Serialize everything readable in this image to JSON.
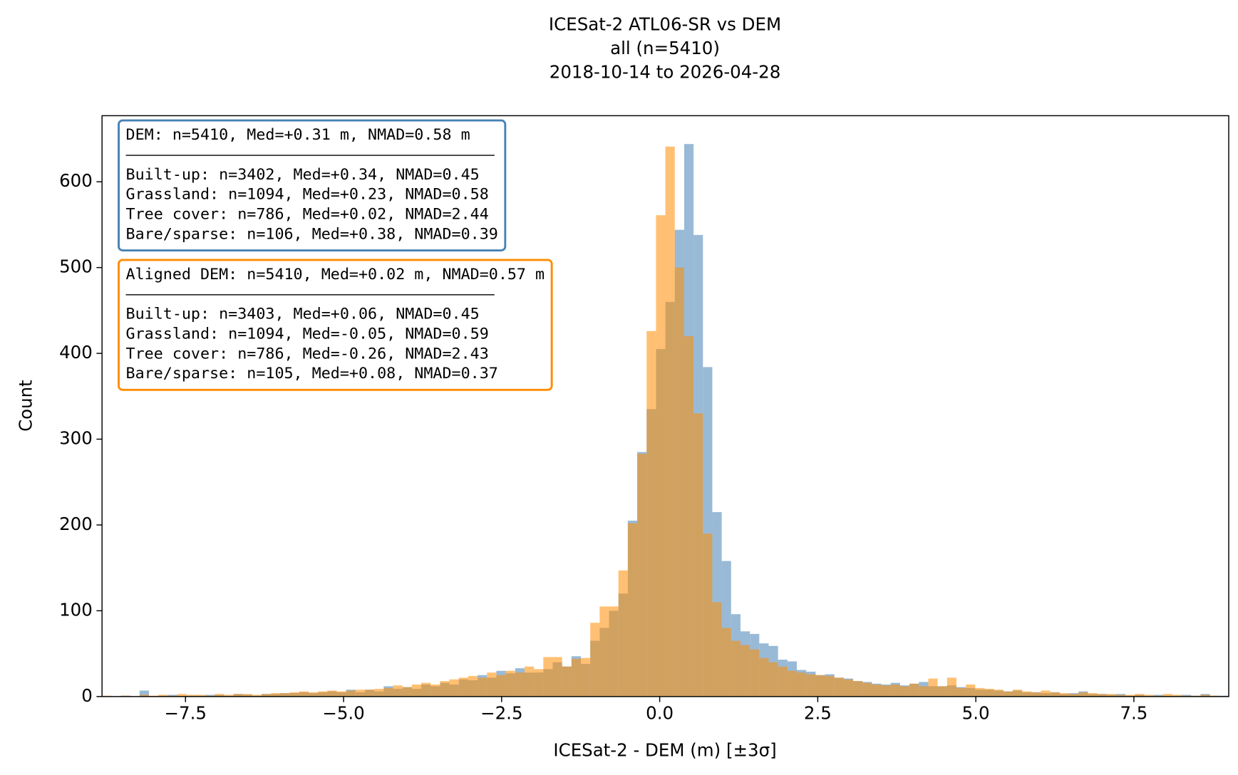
{
  "chart_data": {
    "type": "histogram",
    "title": "ICESat-2 ATL06-SR vs DEM",
    "subtitle": [
      "all (n=5410)",
      "2018-10-14 to 2026-04-28"
    ],
    "xlabel": "ICESat-2 - DEM (m) [±3σ]",
    "ylabel": "Count",
    "xlim": [
      -8.82,
      9.0
    ],
    "ylim": [
      0,
      677
    ],
    "xticks": [
      {
        "value": -7.5,
        "label": "−7.5"
      },
      {
        "value": -5,
        "label": "−5.0"
      },
      {
        "value": -2.5,
        "label": "−2.5"
      },
      {
        "value": 0,
        "label": "0.0"
      },
      2.5,
      {
        "value": 5,
        "label": "5.0"
      },
      7.5
    ],
    "yticks": [
      0,
      100,
      200,
      300,
      400,
      500,
      600
    ],
    "bins": [
      -8.82,
      -8.6715,
      -8.523,
      -8.3745,
      -8.226,
      -8.0775,
      -7.929,
      -7.7805,
      -7.632,
      -7.4835,
      -7.335,
      -7.1865,
      -7.038,
      -6.8895,
      -6.741,
      -6.5925,
      -6.444,
      -6.2955,
      -6.147,
      -5.9985,
      -5.85,
      -5.7015,
      -5.553,
      -5.4045,
      -5.256,
      -5.1075,
      -4.959,
      -4.8105,
      -4.662,
      -4.5135,
      -4.365,
      -4.2165,
      -4.068,
      -3.9195,
      -3.771,
      -3.6225,
      -3.474,
      -3.3255,
      -3.177,
      -3.0285,
      -2.88,
      -2.7315,
      -2.583,
      -2.4345,
      -2.286,
      -2.1375,
      -1.989,
      -1.8405,
      -1.692,
      -1.5435,
      -1.395,
      -1.2465,
      -1.098,
      -0.9495,
      -0.801,
      -0.6525,
      -0.504,
      -0.3555,
      -0.207,
      -0.0585,
      0.09,
      0.2385,
      0.387,
      0.5355,
      0.684,
      0.8325,
      0.981,
      1.1295,
      1.278,
      1.4265,
      1.575,
      1.7235,
      1.872,
      2.0205,
      2.169,
      2.3175,
      2.466,
      2.6145,
      2.763,
      2.9115,
      3.06,
      3.2085,
      3.357,
      3.5055,
      3.654,
      3.8025,
      3.951,
      4.0995,
      4.248,
      4.3965,
      4.545,
      4.6935,
      4.842,
      4.9905,
      5.139,
      5.2875,
      5.436,
      5.5845,
      5.733,
      5.8815,
      6.03,
      6.1785,
      6.327,
      6.4755,
      6.624,
      6.7725,
      6.921,
      7.0695,
      7.218,
      7.3665,
      7.515,
      7.6635,
      7.812,
      7.9605,
      8.109,
      8.2575,
      8.406,
      8.5545,
      8.703,
      8.8515,
      9.0
    ],
    "series": [
      {
        "color": "#4682b4",
        "alpha": 0.55,
        "values": [
          0,
          0,
          1,
          0,
          7,
          0,
          1,
          2,
          1,
          1,
          1,
          2,
          2,
          1,
          3,
          2,
          1,
          3,
          3,
          4,
          4,
          5,
          4,
          5,
          6,
          5,
          8,
          5,
          8,
          6,
          12,
          9,
          11,
          9,
          14,
          12,
          16,
          14,
          20,
          19,
          25,
          22,
          30,
          27,
          33,
          28,
          28,
          32,
          40,
          35,
          47,
          38,
          65,
          80,
          100,
          120,
          205,
          285,
          335,
          405,
          460,
          544,
          644,
          538,
          384,
          215,
          158,
          96,
          76,
          73,
          62,
          59,
          43,
          41,
          31,
          29,
          25,
          26,
          22,
          21,
          18,
          17,
          15,
          14,
          16,
          13,
          15,
          17,
          12,
          12,
          13,
          11,
          10,
          8,
          8,
          7,
          6,
          7,
          5,
          5,
          4,
          5,
          3,
          4,
          6,
          3,
          3,
          2,
          3,
          1,
          2,
          1,
          2,
          1,
          1,
          2,
          1,
          3,
          1,
          1
        ]
      },
      {
        "color": "#ff8c00",
        "alpha": 0.55,
        "values": [
          1,
          0,
          1,
          0,
          2,
          1,
          2,
          1,
          3,
          2,
          2,
          1,
          3,
          2,
          3,
          3,
          2,
          3,
          4,
          4,
          5,
          6,
          5,
          6,
          7,
          6,
          7,
          8,
          8,
          9,
          10,
          13,
          11,
          14,
          16,
          14,
          18,
          20,
          22,
          24,
          22,
          28,
          25,
          30,
          28,
          35,
          32,
          46,
          46,
          35,
          44,
          45,
          86,
          105,
          105,
          147,
          202,
          283,
          426,
          561,
          641,
          500,
          420,
          330,
          190,
          110,
          80,
          65,
          60,
          55,
          45,
          40,
          35,
          30,
          28,
          26,
          25,
          24,
          22,
          20,
          18,
          16,
          14,
          13,
          14,
          12,
          15,
          12,
          21,
          12,
          22,
          10,
          14,
          10,
          9,
          8,
          6,
          8,
          6,
          5,
          7,
          5,
          4,
          3,
          5,
          4,
          3,
          3,
          2,
          2,
          3,
          2,
          1,
          3,
          2,
          1,
          1,
          2,
          1,
          0
        ]
      }
    ],
    "annotations": [
      {
        "color": "#4682b4",
        "header": "DEM: n=5410, Med=+0.31 m, NMAD=0.58 m",
        "lines": [
          "Built-up: n=3402, Med=+0.34, NMAD=0.45",
          "Grassland: n=1094, Med=+0.23, NMAD=0.58",
          "Tree cover: n=786, Med=+0.02, NMAD=2.44",
          "Bare/sparse: n=106, Med=+0.38, NMAD=0.39"
        ]
      },
      {
        "color": "#ff8c00",
        "header": "Aligned DEM: n=5410, Med=+0.02 m, NMAD=0.57 m",
        "lines": [
          "Built-up: n=3403, Med=+0.06, NMAD=0.45",
          "Grassland: n=1094, Med=-0.05, NMAD=0.59",
          "Tree cover: n=786, Med=-0.26, NMAD=2.43",
          "Bare/sparse: n=105, Med=+0.08, NMAD=0.37"
        ]
      }
    ]
  }
}
